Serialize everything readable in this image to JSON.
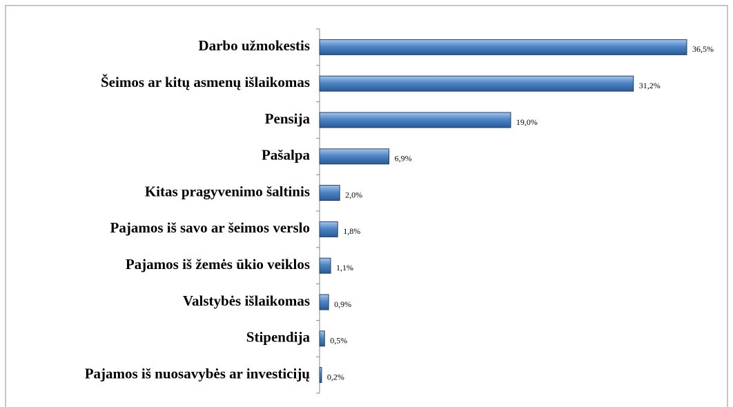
{
  "chart_data": {
    "type": "hbar",
    "categories": [
      "Darbo užmokestis",
      "Šeimos ar kitų asmenų išlaikomas",
      "Pensija",
      "Pašalpa",
      "Kitas pragyvenimo šaltinis",
      "Pajamos iš savo ar šeimos verslo",
      "Pajamos iš žemės ūkio veiklos",
      "Valstybės išlaikomas",
      "Stipendija",
      "Pajamos iš nuosavybės ar investicijų"
    ],
    "values": [
      36.5,
      31.2,
      19.0,
      6.9,
      2.0,
      1.8,
      1.1,
      0.9,
      0.5,
      0.2
    ],
    "value_labels": [
      "36,5%",
      "31,2%",
      "19,0%",
      "6,9%",
      "2,0%",
      "1,8%",
      "1,1%",
      "0,9%",
      "0,5%",
      "0,2%"
    ],
    "color": "#4a7ebb",
    "xlim": [
      0,
      40
    ]
  }
}
